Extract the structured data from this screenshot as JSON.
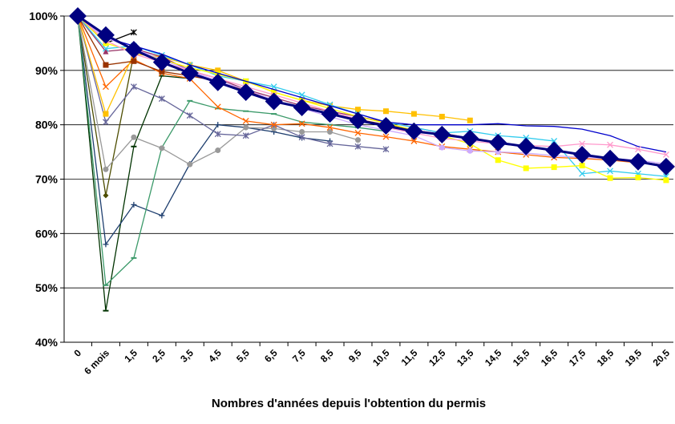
{
  "chart_data": {
    "type": "line",
    "x_label": "Nombres d'années depuis l'obtention du permis",
    "categories": [
      "0",
      "6 mois",
      "1,5",
      "2,5",
      "3,5",
      "4,5",
      "5,5",
      "6,5",
      "7,5",
      "8,5",
      "9,5",
      "10,5",
      "11,5",
      "12,5",
      "13,5",
      "14,5",
      "15,5",
      "16,5",
      "17,5",
      "18,5",
      "19,5",
      "20,5"
    ],
    "ylim": [
      40,
      100
    ],
    "yticks": [
      {
        "value": 40,
        "label": "40%"
      },
      {
        "value": 50,
        "label": "50%"
      },
      {
        "value": 60,
        "label": "60%"
      },
      {
        "value": 70,
        "label": "70%"
      },
      {
        "value": 80,
        "label": "80%"
      },
      {
        "value": 90,
        "label": "90%"
      },
      {
        "value": 100,
        "label": "100%"
      }
    ],
    "grid": true,
    "series": [
      {
        "color": "#000000",
        "marker": "star",
        "values": [
          100,
          95,
          97,
          null,
          null,
          null,
          null,
          null,
          null,
          null,
          null,
          null,
          null,
          null,
          null,
          null,
          null,
          null,
          null,
          null,
          null,
          null
        ]
      },
      {
        "color": "#003300",
        "marker": "dash",
        "values": [
          100,
          45.8,
          76,
          89,
          88.5,
          null,
          null,
          null,
          null,
          null,
          null,
          null,
          null,
          null,
          null,
          null,
          null,
          null,
          null,
          null,
          null,
          null
        ]
      },
      {
        "color": "#4d4d00",
        "marker": "diamond",
        "values": [
          100,
          67,
          93,
          null,
          null,
          null,
          null,
          null,
          null,
          null,
          null,
          null,
          null,
          null,
          null,
          null,
          null,
          null,
          null,
          null,
          null,
          null
        ]
      },
      {
        "color": "#1f3f6f",
        "marker": "plus",
        "values": [
          100,
          58,
          65.3,
          63.3,
          72.8,
          80,
          79.5,
          78.7,
          77.6,
          77,
          null,
          null,
          null,
          null,
          null,
          null,
          null,
          null,
          null,
          null,
          null,
          null
        ]
      },
      {
        "color": "#3c9a6a",
        "marker": "dash",
        "values": [
          100,
          50.5,
          55.5,
          75.8,
          84.4,
          83,
          82.5,
          82,
          80.5,
          80,
          79.5,
          78.8,
          null,
          null,
          null,
          null,
          null,
          null,
          null,
          null,
          null,
          null
        ]
      },
      {
        "color": "#999999",
        "marker": "circle",
        "values": [
          100,
          71.8,
          77.7,
          75.7,
          72.7,
          75.3,
          79.5,
          79.3,
          78.7,
          78.7,
          77.2,
          null,
          null,
          null,
          null,
          null,
          null,
          null,
          null,
          null,
          null,
          null
        ]
      },
      {
        "color": "#66669a",
        "marker": "star",
        "values": [
          100,
          80.5,
          87,
          84.8,
          81.7,
          78.3,
          78,
          80,
          77.7,
          76.5,
          76,
          75.5,
          null,
          null,
          null,
          null,
          null,
          null,
          null,
          null,
          null,
          null
        ]
      },
      {
        "color": "#ff6600",
        "marker": "x",
        "values": [
          100,
          87,
          92,
          89.5,
          88.5,
          83.3,
          80.7,
          80,
          80.2,
          79.5,
          78.5,
          77.8,
          77,
          76,
          75.5,
          75,
          74.5,
          74,
          73.8,
          73.5,
          73,
          72.5
        ]
      },
      {
        "color": "#ffc000",
        "marker": "square",
        "values": [
          100,
          82,
          93,
          92.5,
          91,
          90,
          88,
          86,
          84.5,
          83.5,
          82.8,
          82.5,
          82,
          81.5,
          80.8,
          null,
          null,
          null,
          null,
          null,
          null,
          null
        ]
      },
      {
        "color": "#993300",
        "marker": "square",
        "values": [
          100,
          91,
          91.7,
          89.8,
          89,
          88,
          86.3,
          84.5,
          83,
          82,
          81,
          80,
          79,
          78.2,
          77.5,
          76.8,
          76,
          75.3,
          74.5,
          73.8,
          73.2,
          72.5
        ]
      },
      {
        "color": "#993366",
        "marker": "triangle",
        "values": [
          100,
          93.5,
          94,
          92.5,
          90,
          88.5,
          86.5,
          85,
          83.5,
          82.5,
          81.5,
          80.5,
          79.5,
          78.5,
          77.5,
          76.8,
          76,
          75.3,
          74.5,
          73.8,
          73.2,
          72.5
        ]
      },
      {
        "color": "#33ccee",
        "marker": "x",
        "values": [
          100,
          94,
          94.5,
          92.8,
          91,
          89,
          88,
          87,
          85.5,
          83.7,
          82,
          80.5,
          79.5,
          78.5,
          78.8,
          78,
          77.6,
          77,
          71,
          71.5,
          71,
          70.5
        ]
      },
      {
        "color": "#ffff00",
        "marker": "square",
        "values": [
          100,
          95,
          93.5,
          92,
          90.5,
          89.3,
          88,
          86,
          84.5,
          83,
          81.5,
          80.3,
          79,
          78,
          76.5,
          73.5,
          72,
          72.2,
          72.5,
          70.2,
          70.3,
          69.8
        ]
      },
      {
        "color": "#0000cc",
        "marker": "none",
        "values": [
          100,
          96,
          94.5,
          93,
          91,
          89.5,
          88,
          86.5,
          85,
          83.5,
          82,
          80.5,
          80,
          80,
          80,
          80.2,
          79.8,
          79.7,
          79.2,
          78,
          76,
          75
        ]
      },
      {
        "color": "#ccaaff",
        "marker": "circle",
        "values": [
          100,
          96,
          94,
          92,
          90,
          88,
          86.5,
          84.5,
          83,
          81.5,
          80,
          79,
          78,
          75.8,
          75.2,
          75,
          74.8,
          74.3,
          74,
          73.8,
          73.5,
          72.8
        ]
      },
      {
        "color": "#ff99cc",
        "marker": "x",
        "values": [
          100,
          95.5,
          93,
          91.5,
          90,
          88.5,
          87,
          85.5,
          84,
          82.5,
          81,
          79.5,
          78.5,
          77.5,
          77,
          76.5,
          76.2,
          76,
          76.5,
          76.3,
          75.5,
          74.5
        ]
      },
      {
        "color": "#000080",
        "marker": "bigdiamond",
        "values": [
          100,
          96.5,
          93.8,
          91.5,
          89.5,
          87.8,
          86,
          84.3,
          83.2,
          82,
          80.8,
          79.8,
          78.8,
          78.2,
          77.5,
          76.7,
          76,
          75.3,
          74.5,
          73.8,
          73.2,
          72.3
        ]
      }
    ]
  }
}
